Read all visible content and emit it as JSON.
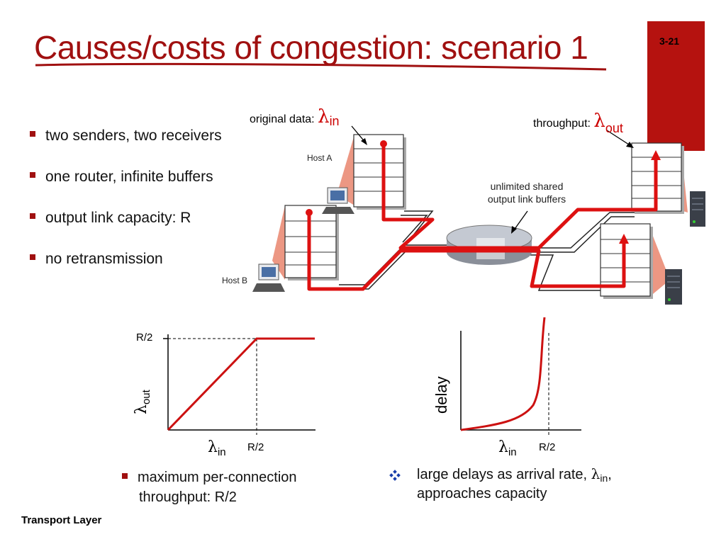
{
  "title": "Causes/costs of congestion: scenario 1",
  "slide_number": "3-21",
  "footer": "Transport Layer",
  "bullets": [
    "two senders, two receivers",
    "one router, infinite buffers",
    "output link capacity: R",
    "no retransmission"
  ],
  "diagram": {
    "original_data_label": "original data:",
    "throughput_label": "throughput:",
    "lambda": "λ",
    "sub_in": "in",
    "sub_out": "out",
    "host_a": "Host A",
    "host_b": "Host B",
    "buffer_label_line1": "unlimited shared",
    "buffer_label_line2": "output link buffers"
  },
  "chart_left": {
    "y_tick": "R/2",
    "x_tick": "R/2",
    "y_label_symbol": "λ",
    "y_label_sub": "out",
    "x_label_symbol": "λ",
    "x_label_sub": "in"
  },
  "chart_right": {
    "y_label": "delay",
    "x_tick": "R/2",
    "x_label_symbol": "λ",
    "x_label_sub": "in"
  },
  "caption_left_line1": "maximum per-connection",
  "caption_left_line2": "throughput: R/2",
  "caption_right_line1_a": "large delays as arrival rate, ",
  "caption_right_symbol": "λ",
  "caption_right_sub": "in",
  "caption_right_line1_b": ",",
  "caption_right_line2": "approaches capacity",
  "colors": {
    "accent": "#a01010",
    "flow": "#dd1111"
  }
}
